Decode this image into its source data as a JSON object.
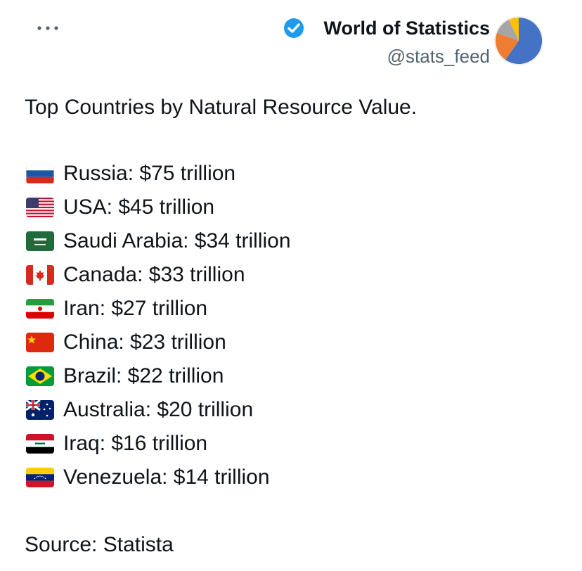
{
  "header": {
    "name": "World of Statistics",
    "handle": "@stats_feed"
  },
  "post": {
    "title": "Top Countries by Natural Resource Value.",
    "items": [
      "Russia: $75 trillion",
      "USA: $45 trillion",
      "Saudi Arabia: $34 trillion",
      "Canada: $33 trillion",
      "Iran: $27 trillion",
      "China: $23 trillion",
      "Brazil: $22 trillion",
      "Australia: $20 trillion",
      "Iraq: $16 trillion",
      "Venezuela: $14 trillion"
    ],
    "source": "Source: Statista"
  }
}
